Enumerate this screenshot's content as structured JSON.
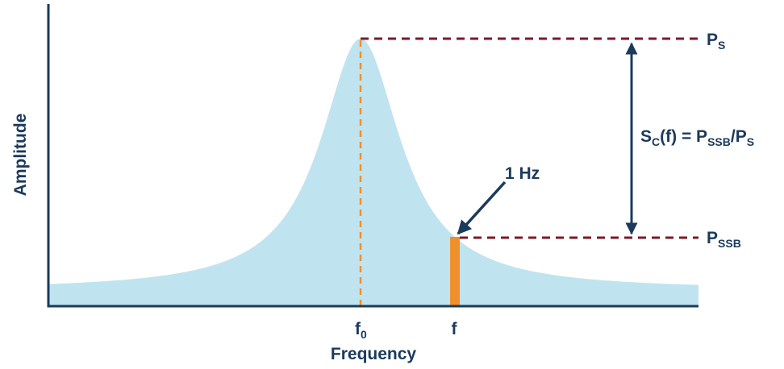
{
  "axes": {
    "y_label": "Amplitude",
    "x_label": "Frequency"
  },
  "markers": {
    "f0": {
      "main": "f",
      "sub": "0"
    },
    "f": "f",
    "bandwidth": "1 Hz"
  },
  "levels": {
    "ps": {
      "main": "P",
      "sub": "S"
    },
    "pssb": {
      "main": "P",
      "sub": "SSB"
    }
  },
  "equation": {
    "parts": [
      "S",
      "C",
      "(f) = P",
      "SSB",
      "/P",
      "S"
    ]
  }
}
